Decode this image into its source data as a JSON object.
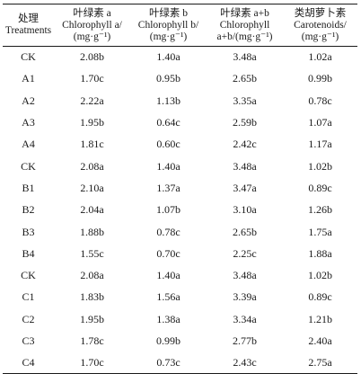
{
  "table": {
    "columns": [
      {
        "lines": [
          "处理",
          "Treatments"
        ]
      },
      {
        "lines": [
          "叶绿素 a",
          "Chlorophyll a/",
          "(mg·g⁻¹)"
        ]
      },
      {
        "lines": [
          "叶绿素 b",
          "Chlorophyll b/",
          "(mg·g⁻¹)"
        ]
      },
      {
        "lines": [
          "叶绿素 a+b",
          "Chlorophyll",
          "a+b/(mg·g⁻¹)"
        ]
      },
      {
        "lines": [
          "类胡萝卜素",
          "Carotenoids/",
          "(mg·g⁻¹)"
        ]
      }
    ],
    "rows": [
      [
        "CK",
        "2.08b",
        "1.40a",
        "3.48a",
        "1.02a"
      ],
      [
        "A1",
        "1.70c",
        "0.95b",
        "2.65b",
        "0.99b"
      ],
      [
        "A2",
        "2.22a",
        "1.13b",
        "3.35a",
        "0.78c"
      ],
      [
        "A3",
        "1.95b",
        "0.64c",
        "2.59b",
        "1.07a"
      ],
      [
        "A4",
        "1.81c",
        "0.60c",
        "2.42c",
        "1.17a"
      ],
      [
        "CK",
        "2.08a",
        "1.40a",
        "3.48a",
        "1.02b"
      ],
      [
        "B1",
        "2.10a",
        "1.37a",
        "3.47a",
        "0.89c"
      ],
      [
        "B2",
        "2.04a",
        "1.07b",
        "3.10a",
        "1.26b"
      ],
      [
        "B3",
        "1.88b",
        "0.78c",
        "2.65b",
        "1.75a"
      ],
      [
        "B4",
        "1.55c",
        "0.70c",
        "2.25c",
        "1.88a"
      ],
      [
        "CK",
        "2.08a",
        "1.40a",
        "3.48a",
        "1.02b"
      ],
      [
        "C1",
        "1.83b",
        "1.56a",
        "3.39a",
        "0.89c"
      ],
      [
        "C2",
        "1.95b",
        "1.38a",
        "3.34a",
        "1.21b"
      ],
      [
        "C3",
        "1.78c",
        "0.99b",
        "2.77b",
        "2.40a"
      ],
      [
        "C4",
        "1.70c",
        "0.73c",
        "2.43c",
        "2.75a"
      ]
    ]
  }
}
